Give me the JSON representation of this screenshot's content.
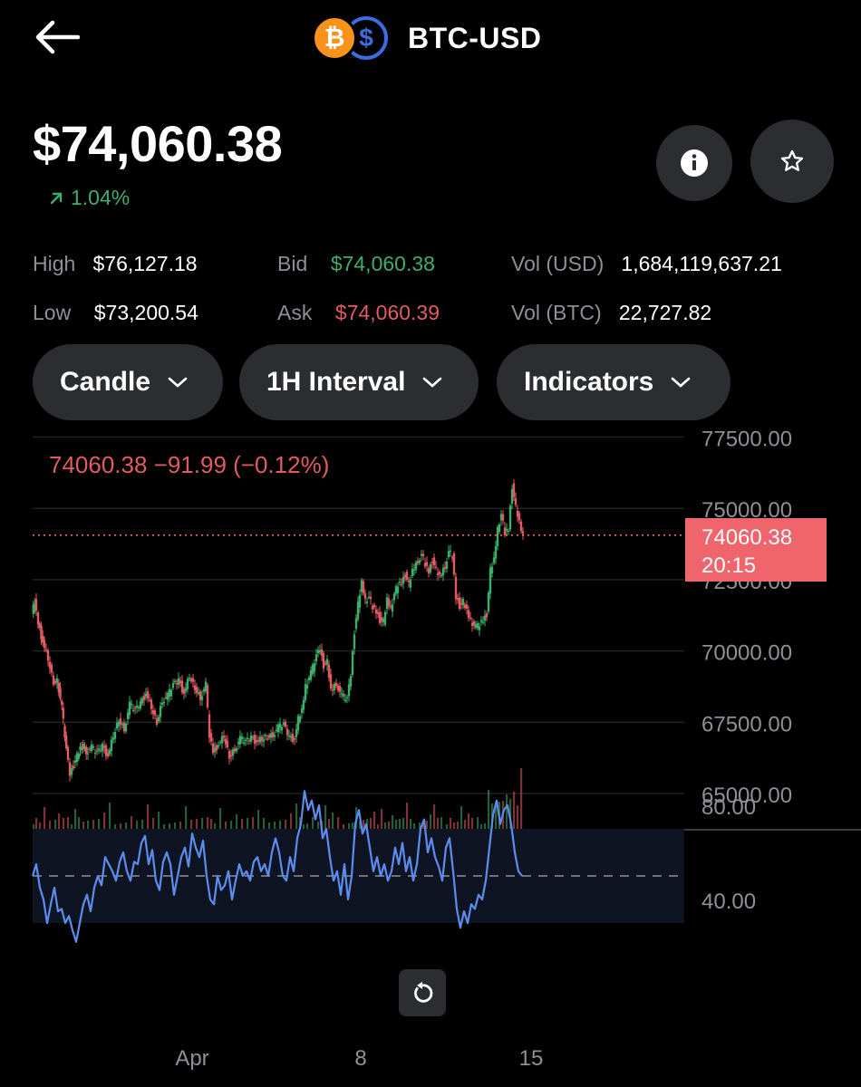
{
  "header": {
    "back_icon": "arrow-left-icon",
    "base_icon": "bitcoin-icon",
    "quote_icon": "dollar-icon",
    "base_symbol": "₿",
    "quote_symbol": "$",
    "pair": "BTC-USD"
  },
  "price": {
    "current": "$74,060.38",
    "change": "1.04%",
    "change_icon": "arrow-up-right-icon"
  },
  "actions": {
    "info_icon": "info-icon",
    "favorite_icon": "star-icon"
  },
  "stats": {
    "high_label": "High",
    "high_value": "$76,127.18",
    "low_label": "Low",
    "low_value": "$73,200.54",
    "bid_label": "Bid",
    "bid_value": "$74,060.38",
    "ask_label": "Ask",
    "ask_value": "$74,060.39",
    "vol_usd_label": "Vol (USD)",
    "vol_usd_value": "1,684,119,637.21",
    "vol_btc_label": "Vol (BTC)",
    "vol_btc_value": "22,727.82"
  },
  "controls": {
    "chart_type": "Candle",
    "interval": "1H Interval",
    "indicators": "Indicators"
  },
  "colors": {
    "up": "#3fae6a",
    "down": "#e25b63",
    "rsi": "#5b8def",
    "price_tag_bg": "#f0646c"
  },
  "chart_data": {
    "type": "candlestick",
    "legend": {
      "last": "74060.38",
      "change": "−91.99",
      "change_pct": "(−0.12%)"
    },
    "price_tag": {
      "value": "74060.38",
      "countdown": "20:15"
    },
    "current_price": 74060.38,
    "y_ticks": [
      "77500.00",
      "75000.00",
      "72500.00",
      "70000.00",
      "67500.00",
      "65000.00"
    ],
    "y_range": [
      64000,
      78000
    ],
    "close_path_points": [
      [
        0,
        71300
      ],
      [
        3,
        71700
      ],
      [
        7,
        71000
      ],
      [
        12,
        70300
      ],
      [
        18,
        69700
      ],
      [
        24,
        68900
      ],
      [
        28,
        69000
      ],
      [
        33,
        68000
      ],
      [
        38,
        66500
      ],
      [
        42,
        65700
      ],
      [
        46,
        66000
      ],
      [
        50,
        66300
      ],
      [
        55,
        66700
      ],
      [
        60,
        66500
      ],
      [
        66,
        66600
      ],
      [
        72,
        66400
      ],
      [
        78,
        66700
      ],
      [
        84,
        66300
      ],
      [
        90,
        67000
      ],
      [
        96,
        67600
      ],
      [
        102,
        67300
      ],
      [
        108,
        68100
      ],
      [
        114,
        67900
      ],
      [
        120,
        68200
      ],
      [
        126,
        68500
      ],
      [
        132,
        68000
      ],
      [
        138,
        67500
      ],
      [
        144,
        68300
      ],
      [
        150,
        68400
      ],
      [
        156,
        68800
      ],
      [
        162,
        69000
      ],
      [
        168,
        68500
      ],
      [
        174,
        69100
      ],
      [
        180,
        68700
      ],
      [
        186,
        68400
      ],
      [
        192,
        68800
      ],
      [
        196,
        67000
      ],
      [
        200,
        66500
      ],
      [
        206,
        66700
      ],
      [
        212,
        67000
      ],
      [
        218,
        66300
      ],
      [
        224,
        66600
      ],
      [
        230,
        66900
      ],
      [
        236,
        66800
      ],
      [
        242,
        67000
      ],
      [
        248,
        66800
      ],
      [
        254,
        66900
      ],
      [
        260,
        67000
      ],
      [
        266,
        67100
      ],
      [
        272,
        67300
      ],
      [
        278,
        67400
      ],
      [
        284,
        67000
      ],
      [
        290,
        66900
      ],
      [
        294,
        67600
      ],
      [
        298,
        67900
      ],
      [
        302,
        68800
      ],
      [
        308,
        69200
      ],
      [
        314,
        69800
      ],
      [
        318,
        70100
      ],
      [
        322,
        69500
      ],
      [
        326,
        69600
      ],
      [
        330,
        68600
      ],
      [
        336,
        68900
      ],
      [
        342,
        68400
      ],
      [
        348,
        68300
      ],
      [
        352,
        69200
      ],
      [
        356,
        70700
      ],
      [
        360,
        71600
      ],
      [
        364,
        72400
      ],
      [
        368,
        71800
      ],
      [
        372,
        71900
      ],
      [
        376,
        71500
      ],
      [
        380,
        71400
      ],
      [
        384,
        71100
      ],
      [
        388,
        71000
      ],
      [
        392,
        71800
      ],
      [
        396,
        71500
      ],
      [
        400,
        72000
      ],
      [
        404,
        72300
      ],
      [
        408,
        72400
      ],
      [
        412,
        72700
      ],
      [
        416,
        72300
      ],
      [
        420,
        72800
      ],
      [
        426,
        73200
      ],
      [
        430,
        73400
      ],
      [
        434,
        73000
      ],
      [
        438,
        72800
      ],
      [
        442,
        73200
      ],
      [
        446,
        72800
      ],
      [
        450,
        72600
      ],
      [
        456,
        73000
      ],
      [
        460,
        73500
      ],
      [
        464,
        73300
      ],
      [
        468,
        71900
      ],
      [
        472,
        71600
      ],
      [
        476,
        71700
      ],
      [
        480,
        71400
      ],
      [
        484,
        71100
      ],
      [
        490,
        70800
      ],
      [
        494,
        70900
      ],
      [
        498,
        71100
      ],
      [
        502,
        71300
      ],
      [
        506,
        72800
      ],
      [
        510,
        73200
      ],
      [
        514,
        74300
      ],
      [
        518,
        74800
      ],
      [
        522,
        74100
      ],
      [
        526,
        74300
      ],
      [
        530,
        75800
      ],
      [
        534,
        75000
      ],
      [
        538,
        74500
      ],
      [
        542,
        74060
      ]
    ],
    "x_ticks": [
      "Apr",
      "8",
      "15"
    ],
    "rsi": {
      "labels": [
        "80.00",
        "40.00"
      ],
      "range": [
        25,
        90
      ],
      "band": [
        30,
        70
      ],
      "midline": 50,
      "values": [
        [
          0,
          50
        ],
        [
          4,
          55
        ],
        [
          8,
          45
        ],
        [
          12,
          40
        ],
        [
          16,
          30
        ],
        [
          20,
          38
        ],
        [
          24,
          45
        ],
        [
          28,
          35
        ],
        [
          32,
          36
        ],
        [
          36,
          30
        ],
        [
          40,
          33
        ],
        [
          44,
          27
        ],
        [
          48,
          22
        ],
        [
          52,
          30
        ],
        [
          56,
          38
        ],
        [
          60,
          42
        ],
        [
          64,
          35
        ],
        [
          68,
          45
        ],
        [
          72,
          50
        ],
        [
          76,
          46
        ],
        [
          80,
          58
        ],
        [
          84,
          55
        ],
        [
          88,
          52
        ],
        [
          92,
          48
        ],
        [
          96,
          56
        ],
        [
          100,
          60
        ],
        [
          104,
          52
        ],
        [
          108,
          48
        ],
        [
          112,
          56
        ],
        [
          116,
          55
        ],
        [
          120,
          64
        ],
        [
          124,
          67
        ],
        [
          128,
          55
        ],
        [
          132,
          61
        ],
        [
          136,
          48
        ],
        [
          140,
          44
        ],
        [
          144,
          56
        ],
        [
          148,
          60
        ],
        [
          152,
          55
        ],
        [
          156,
          42
        ],
        [
          160,
          50
        ],
        [
          164,
          58
        ],
        [
          168,
          62
        ],
        [
          172,
          54
        ],
        [
          176,
          68
        ],
        [
          180,
          62
        ],
        [
          184,
          58
        ],
        [
          188,
          65
        ],
        [
          192,
          50
        ],
        [
          196,
          40
        ],
        [
          200,
          38
        ],
        [
          204,
          50
        ],
        [
          208,
          44
        ],
        [
          212,
          46
        ],
        [
          216,
          52
        ],
        [
          220,
          40
        ],
        [
          224,
          48
        ],
        [
          228,
          55
        ],
        [
          232,
          50
        ],
        [
          236,
          52
        ],
        [
          240,
          48
        ],
        [
          244,
          56
        ],
        [
          248,
          58
        ],
        [
          252,
          52
        ],
        [
          256,
          55
        ],
        [
          260,
          50
        ],
        [
          264,
          60
        ],
        [
          268,
          66
        ],
        [
          272,
          60
        ],
        [
          276,
          50
        ],
        [
          280,
          48
        ],
        [
          284,
          58
        ],
        [
          288,
          52
        ],
        [
          292,
          66
        ],
        [
          296,
          72
        ],
        [
          300,
          86
        ],
        [
          304,
          78
        ],
        [
          308,
          82
        ],
        [
          312,
          74
        ],
        [
          316,
          80
        ],
        [
          320,
          66
        ],
        [
          324,
          70
        ],
        [
          328,
          58
        ],
        [
          332,
          48
        ],
        [
          336,
          52
        ],
        [
          340,
          42
        ],
        [
          344,
          55
        ],
        [
          348,
          40
        ],
        [
          352,
          50
        ],
        [
          356,
          72
        ],
        [
          360,
          78
        ],
        [
          364,
          68
        ],
        [
          368,
          72
        ],
        [
          372,
          62
        ],
        [
          376,
          52
        ],
        [
          380,
          58
        ],
        [
          384,
          50
        ],
        [
          388,
          55
        ],
        [
          392,
          48
        ],
        [
          396,
          52
        ],
        [
          400,
          62
        ],
        [
          404,
          55
        ],
        [
          408,
          64
        ],
        [
          412,
          52
        ],
        [
          416,
          58
        ],
        [
          420,
          48
        ],
        [
          424,
          55
        ],
        [
          428,
          70
        ],
        [
          432,
          74
        ],
        [
          436,
          60
        ],
        [
          440,
          66
        ],
        [
          444,
          58
        ],
        [
          448,
          54
        ],
        [
          452,
          48
        ],
        [
          456,
          62
        ],
        [
          460,
          66
        ],
        [
          464,
          52
        ],
        [
          468,
          36
        ],
        [
          472,
          28
        ],
        [
          476,
          35
        ],
        [
          480,
          30
        ],
        [
          484,
          38
        ],
        [
          488,
          36
        ],
        [
          492,
          42
        ],
        [
          496,
          40
        ],
        [
          500,
          48
        ],
        [
          504,
          62
        ],
        [
          508,
          76
        ],
        [
          512,
          82
        ],
        [
          516,
          72
        ],
        [
          520,
          78
        ],
        [
          524,
          80
        ],
        [
          528,
          72
        ],
        [
          532,
          60
        ],
        [
          536,
          52
        ],
        [
          540,
          50
        ]
      ]
    }
  }
}
